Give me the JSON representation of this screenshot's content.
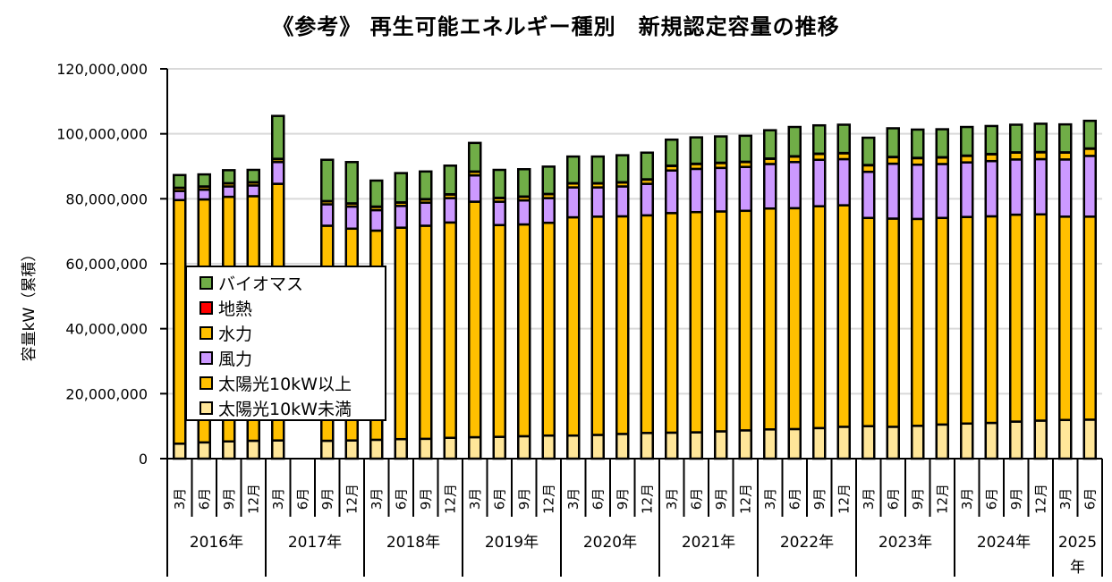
{
  "chart_data": {
    "type": "bar",
    "stacked": true,
    "title": "《参考》 再生可能エネルギー種別　新規認定容量の推移",
    "xlabel": "",
    "ylabel": "容量kW（累積）",
    "ylim": [
      0,
      120000000
    ],
    "yticks": [
      0,
      20000000,
      40000000,
      60000000,
      80000000,
      100000000,
      120000000
    ],
    "ytick_labels": [
      "0",
      "20,000,000",
      "40,000,000",
      "60,000,000",
      "80,000,000",
      "100,000,000",
      "120,000,000"
    ],
    "grid": true,
    "legend_position": "center-left",
    "years": [
      {
        "label": "2016年",
        "months": [
          "3月",
          "6月",
          "9月",
          "12月"
        ]
      },
      {
        "label": "2017年",
        "months": [
          "3月",
          "6月",
          "9月",
          "12月"
        ]
      },
      {
        "label": "2018年",
        "months": [
          "3月",
          "6月",
          "9月",
          "12月"
        ]
      },
      {
        "label": "2019年",
        "months": [
          "3月",
          "6月",
          "9月",
          "12月"
        ]
      },
      {
        "label": "2020年",
        "months": [
          "3月",
          "6月",
          "9月",
          "12月"
        ]
      },
      {
        "label": "2021年",
        "months": [
          "3月",
          "6月",
          "9月",
          "12月"
        ]
      },
      {
        "label": "2022年",
        "months": [
          "3月",
          "6月",
          "9月",
          "12月"
        ]
      },
      {
        "label": "2023年",
        "months": [
          "3月",
          "6月",
          "9月",
          "12月"
        ]
      },
      {
        "label": "2024年",
        "months": [
          "3月",
          "6月",
          "9月",
          "12月"
        ]
      },
      {
        "label": "2025年",
        "months": [
          "3月",
          "6月"
        ]
      }
    ],
    "categories": [
      "2016年3月",
      "2016年6月",
      "2016年9月",
      "2016年12月",
      "2017年3月",
      "2017年6月",
      "2017年9月",
      "2017年12月",
      "2018年3月",
      "2018年6月",
      "2018年9月",
      "2018年12月",
      "2019年3月",
      "2019年6月",
      "2019年9月",
      "2019年12月",
      "2020年3月",
      "2020年6月",
      "2020年9月",
      "2020年12月",
      "2021年3月",
      "2021年6月",
      "2021年9月",
      "2021年12月",
      "2022年3月",
      "2022年6月",
      "2022年9月",
      "2022年12月",
      "2023年3月",
      "2023年6月",
      "2023年9月",
      "2023年12月",
      "2024年3月",
      "2024年6月",
      "2024年9月",
      "2024年12月",
      "2025年3月",
      "2025年6月"
    ],
    "series": [
      {
        "name": "太陽光10kW未満",
        "color": "#FFE699",
        "values": [
          4600000,
          5000000,
          5300000,
          5500000,
          5600000,
          null,
          5500000,
          5600000,
          5800000,
          6000000,
          6100000,
          6400000,
          6600000,
          6700000,
          6900000,
          7100000,
          7100000,
          7300000,
          7600000,
          7900000,
          8000000,
          8100000,
          8400000,
          8700000,
          9000000,
          9100000,
          9400000,
          9800000,
          10000000,
          9800000,
          10100000,
          10500000,
          10800000,
          11000000,
          11400000,
          11700000,
          11900000,
          12000000
        ]
      },
      {
        "name": "太陽光10kW以上",
        "color": "#FFC000",
        "values": [
          75000000,
          74800000,
          75300000,
          75300000,
          79000000,
          null,
          66200000,
          65200000,
          64400000,
          65100000,
          65600000,
          66300000,
          72500000,
          65200000,
          65200000,
          65500000,
          67200000,
          67200000,
          67000000,
          67000000,
          67600000,
          67800000,
          67700000,
          67600000,
          68000000,
          68000000,
          68300000,
          68200000,
          64100000,
          64100000,
          63700000,
          63600000,
          63600000,
          63600000,
          63700000,
          63500000,
          62600000,
          62500000
        ]
      },
      {
        "name": "風力",
        "color": "#CC99FF",
        "values": [
          2800000,
          3000000,
          3200000,
          3300000,
          6700000,
          null,
          6600000,
          6800000,
          6300000,
          6700000,
          7100000,
          7500000,
          8100000,
          7200000,
          7400000,
          7600000,
          9200000,
          9000000,
          9200000,
          9700000,
          13100000,
          13300000,
          13400000,
          13500000,
          13700000,
          14200000,
          14300000,
          14200000,
          14200000,
          16900000,
          16700000,
          16600000,
          16800000,
          17000000,
          17000000,
          17000000,
          17600000,
          18700000
        ]
      },
      {
        "name": "水力",
        "color": "#FFC000",
        "values": [
          900000,
          900000,
          900000,
          900000,
          900000,
          null,
          900000,
          900000,
          1000000,
          1000000,
          1000000,
          1100000,
          1100000,
          1100000,
          1100000,
          1200000,
          1200000,
          1200000,
          1200000,
          1300000,
          1400000,
          1500000,
          1500000,
          1500000,
          1600000,
          1700000,
          1800000,
          1800000,
          2000000,
          2000000,
          2000000,
          2000000,
          2000000,
          2100000,
          2100000,
          2100000,
          2100000,
          2200000
        ]
      },
      {
        "name": "地熱",
        "color": "#FF0000",
        "values": [
          100000,
          100000,
          100000,
          100000,
          100000,
          null,
          100000,
          100000,
          100000,
          100000,
          100000,
          100000,
          100000,
          100000,
          100000,
          100000,
          100000,
          100000,
          100000,
          100000,
          100000,
          100000,
          100000,
          100000,
          100000,
          100000,
          100000,
          100000,
          100000,
          100000,
          100000,
          100000,
          100000,
          100000,
          100000,
          100000,
          100000,
          100000
        ]
      },
      {
        "name": "バイオマス",
        "color": "#70AD47",
        "values": [
          3900000,
          3700000,
          4000000,
          3800000,
          13200000,
          null,
          12700000,
          12700000,
          8000000,
          9000000,
          8500000,
          8800000,
          8800000,
          8600000,
          8400000,
          8400000,
          8200000,
          8200000,
          8300000,
          8200000,
          8000000,
          8100000,
          8100000,
          8000000,
          8700000,
          9000000,
          8700000,
          8700000,
          8400000,
          8800000,
          8700000,
          8600000,
          8800000,
          8600000,
          8500000,
          8700000,
          8600000,
          8500000
        ]
      }
    ],
    "legend": [
      "バイオマス",
      "地熱",
      "水力",
      "風力",
      "太陽光10kW以上",
      "太陽光10kW未満"
    ]
  }
}
